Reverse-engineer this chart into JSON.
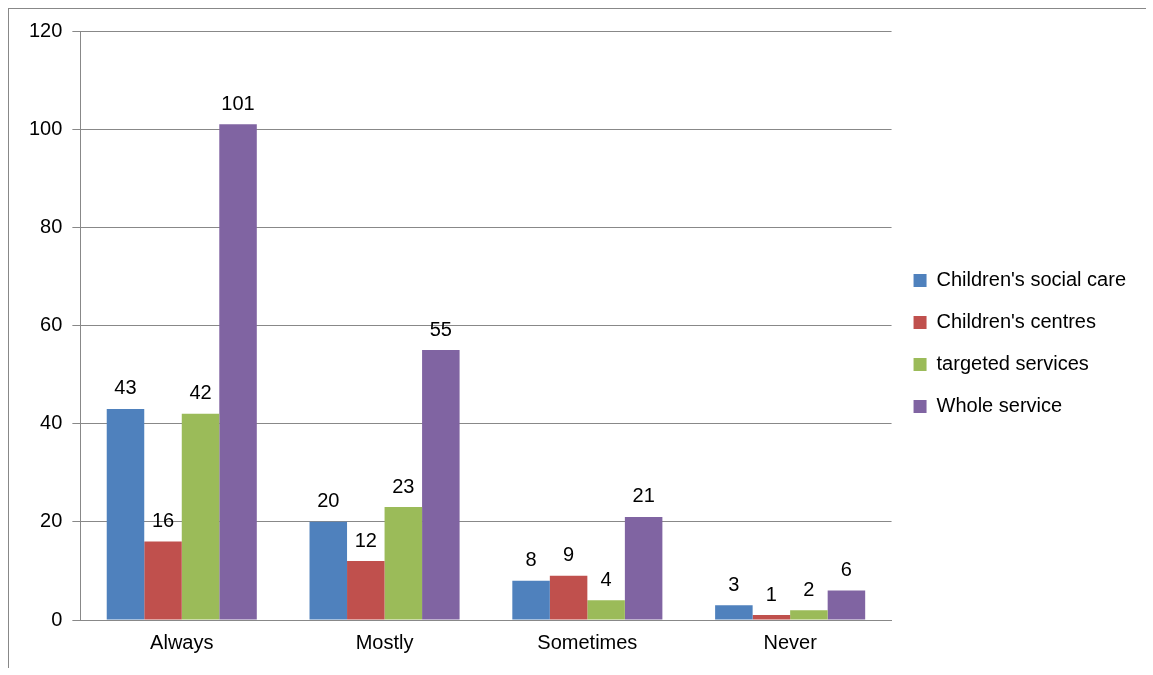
{
  "chart_data": {
    "type": "bar",
    "categories": [
      "Always",
      "Mostly",
      "Sometimes",
      "Never"
    ],
    "series": [
      {
        "name": "Children's social care",
        "color": "#4f81bd",
        "values": [
          43,
          20,
          8,
          3
        ]
      },
      {
        "name": "Children's centres",
        "color": "#c0504d",
        "values": [
          16,
          12,
          9,
          1
        ]
      },
      {
        "name": "targeted services",
        "color": "#9bbb59",
        "values": [
          42,
          23,
          4,
          2
        ]
      },
      {
        "name": "Whole service",
        "color": "#8064a2",
        "values": [
          101,
          55,
          21,
          6
        ]
      }
    ],
    "ylim": [
      0,
      120
    ],
    "yticks": [
      0,
      20,
      40,
      60,
      80,
      100,
      120
    ],
    "grid": "y",
    "legend": "right",
    "data_labels": true
  }
}
